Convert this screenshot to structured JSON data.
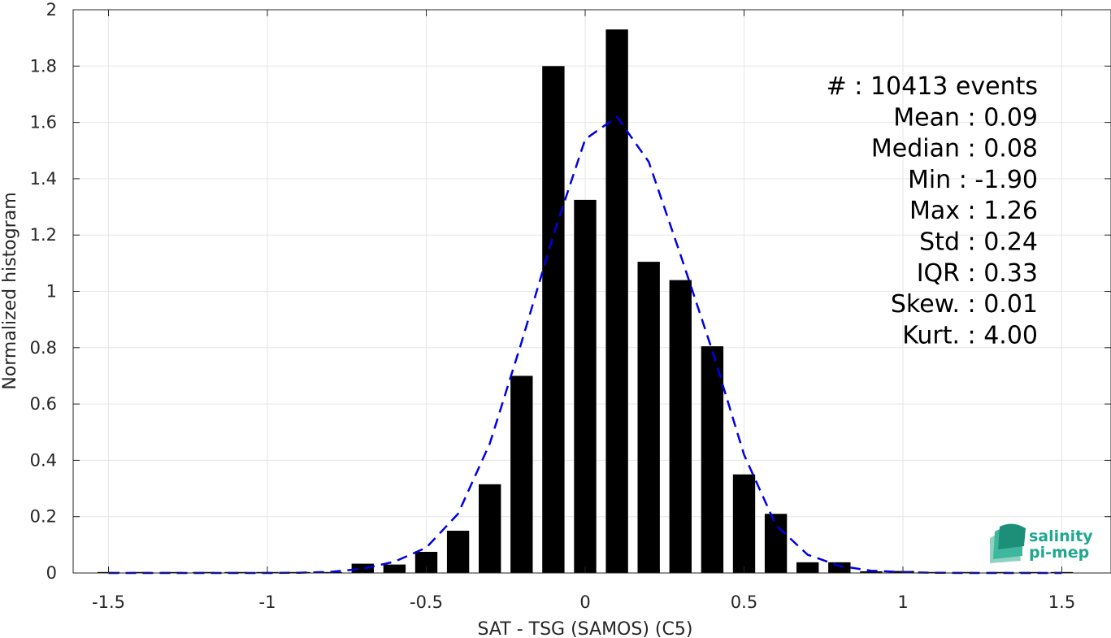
{
  "chart_data": {
    "type": "bar",
    "xlabel": "SAT - TSG (SAMOS) (C5)",
    "ylabel": "Normalized histogram",
    "xlim": [
      -1.6,
      1.65
    ],
    "ylim": [
      0,
      2
    ],
    "grid": true,
    "xticks": [
      -1.5,
      -1,
      -0.5,
      0,
      0.5,
      1,
      1.5
    ],
    "xtick_labels": [
      "-1.5",
      "-1",
      "-0.5",
      "0",
      "0.5",
      "1",
      "1.5"
    ],
    "yticks": [
      0,
      0.2,
      0.4,
      0.6,
      0.8,
      1,
      1.2,
      1.4,
      1.6,
      1.8,
      2
    ],
    "ytick_labels": [
      "0",
      "0.2",
      "0.4",
      "0.6",
      "0.8",
      "1",
      "1.2",
      "1.4",
      "1.6",
      "1.8",
      "2"
    ],
    "bar_width": 0.07,
    "bar_color": "#000000",
    "bars": {
      "x": [
        -1.5,
        -1.4,
        -1.3,
        -1.2,
        -1.1,
        -1.0,
        -0.9,
        -0.8,
        -0.7,
        -0.6,
        -0.5,
        -0.4,
        -0.3,
        -0.2,
        -0.1,
        0.0,
        0.1,
        0.2,
        0.3,
        0.4,
        0.5,
        0.6,
        0.7,
        0.8,
        0.9,
        1.0,
        1.1,
        1.2,
        1.3,
        1.4,
        1.5
      ],
      "y": [
        0.001,
        0,
        0,
        0,
        0,
        0,
        0,
        0.003,
        0.033,
        0.03,
        0.075,
        0.15,
        0.315,
        0.7,
        1.8,
        1.325,
        1.93,
        1.105,
        1.04,
        0.805,
        0.35,
        0.21,
        0.038,
        0.038,
        0.006,
        0.007,
        0.001,
        0,
        0,
        0,
        0
      ]
    },
    "fit_curve": {
      "style": "dashed",
      "color": "#0000e6",
      "x": [
        -1.5,
        -1.4,
        -1.3,
        -1.2,
        -1.1,
        -1.0,
        -0.9,
        -0.8,
        -0.7,
        -0.6,
        -0.5,
        -0.4,
        -0.3,
        -0.2,
        -0.1,
        0.0,
        0.1,
        0.2,
        0.3,
        0.4,
        0.5,
        0.6,
        0.7,
        0.8,
        0.9,
        1.0,
        1.1,
        1.2,
        1.3,
        1.4,
        1.5
      ],
      "y": [
        0,
        0,
        0,
        0,
        0,
        0,
        0.001,
        0.004,
        0.015,
        0.04,
        0.09,
        0.21,
        0.46,
        0.82,
        1.2,
        1.54,
        1.62,
        1.46,
        1.13,
        0.79,
        0.42,
        0.17,
        0.065,
        0.025,
        0.008,
        0.003,
        0.001,
        0,
        0,
        0,
        0
      ]
    },
    "annotations": [
      "#  : 10413 events",
      "Mean : 0.09",
      "Median : 0.08",
      "Min : -1.90",
      "Max : 1.26",
      "Std : 0.24",
      "IQR : 0.33",
      "Skew. : 0.01",
      "Kurt. : 4.00"
    ]
  },
  "logo": {
    "line1": "salinity",
    "line2": "pi-mep",
    "color": "#1fa88f"
  }
}
